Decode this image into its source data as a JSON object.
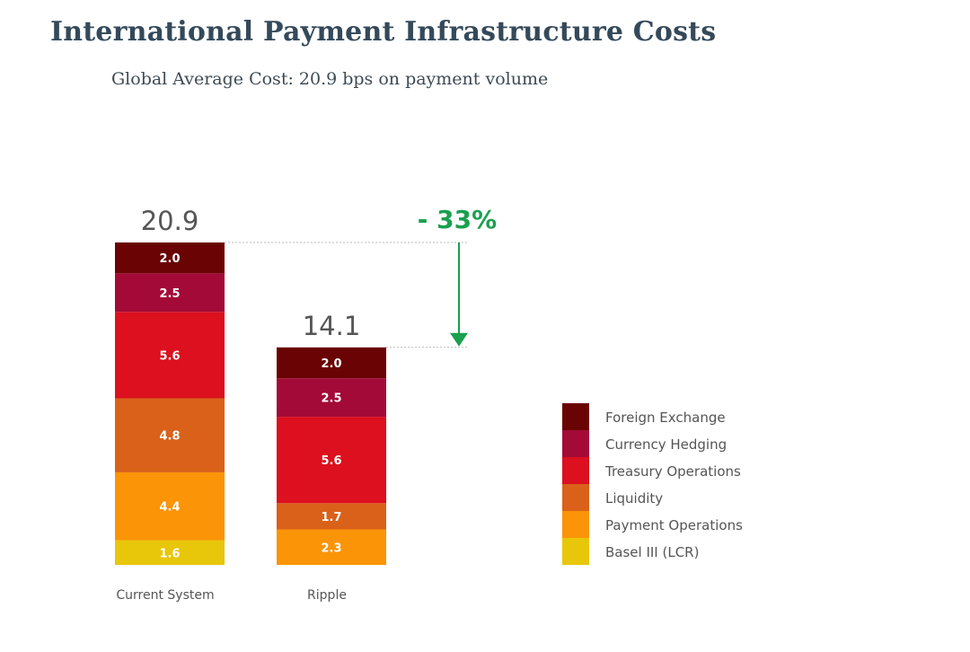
{
  "chart_data": {
    "type": "bar",
    "stacked": true,
    "title": "International Payment Infrastructure Costs",
    "subtitle": "Global Average Cost: 20.9 bps on payment volume",
    "categories": [
      "Current System",
      "Ripple"
    ],
    "totals": [
      "20.9",
      "14.1"
    ],
    "series": [
      {
        "name": "Basel III (LCR)",
        "color": "#e8c60a",
        "values": [
          1.6,
          0
        ]
      },
      {
        "name": "Payment Operations",
        "color": "#fb9406",
        "values": [
          4.4,
          2.3
        ]
      },
      {
        "name": "Liquidity",
        "color": "#d9611a",
        "values": [
          4.8,
          1.7
        ]
      },
      {
        "name": "Treasury Operations",
        "color": "#dc101e",
        "values": [
          5.6,
          5.6
        ]
      },
      {
        "name": "Currency Hedging",
        "color": "#a30a37",
        "values": [
          2.5,
          2.5
        ]
      },
      {
        "name": "Foreign Exchange",
        "color": "#6a0303",
        "values": [
          2.0,
          2.0
        ]
      }
    ],
    "legend_order": [
      "Foreign Exchange",
      "Currency Hedging",
      "Treasury Operations",
      "Liquidity",
      "Payment Operations",
      "Basel III (LCR)"
    ],
    "annotation": "- 33%",
    "annotation_color": "#1aa04f",
    "ylim": [
      0,
      20.9
    ],
    "legend_position": "right",
    "grid": false
  }
}
